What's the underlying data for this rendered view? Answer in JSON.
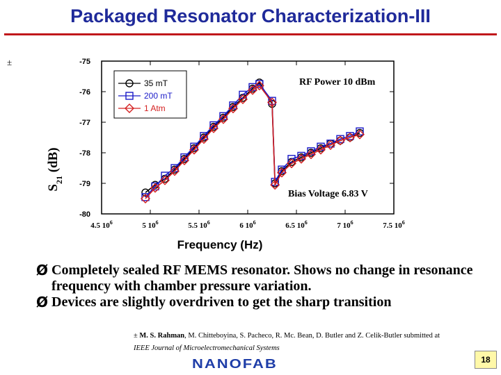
{
  "slide": {
    "title": "Packaged Resonator Characterization-III",
    "footnote_marker": "±",
    "bullets": [
      {
        "arrow": "Ø",
        "text": "Completely sealed RF MEMS resonator. Shows no change in resonance frequency with chamber pressure variation."
      },
      {
        "arrow": "Ø",
        "text": "Devices are slightly overdriven to get the sharp transition"
      }
    ],
    "reference": {
      "marker": "±",
      "lead_author": "M. S. Rahman",
      "authors_rest": ", M. Chitteboyina, S. Pacheco, R. Mc. Bean, D. Butler and Z. Celik-Butler submitted at",
      "journal": "IEEE Journal of Microelectromechanical Systems"
    },
    "logo_text": "NANOFAB",
    "page_number": "18",
    "colors": {
      "title": "#1f2a9a",
      "rule": "#c0171b",
      "logo": "#1f3ea8"
    }
  },
  "chart_data": {
    "type": "line",
    "xlabel": "Frequency (Hz)",
    "ylabel": "S21 (dB)",
    "ylabel_main": "S",
    "ylabel_sub": "21",
    "ylabel_unit": " (dB)",
    "xlim": [
      4500000,
      7500000
    ],
    "ylim": [
      -80,
      -75
    ],
    "xticks": [
      {
        "value": 4500000,
        "mant": "4.5 10",
        "exp": "6"
      },
      {
        "value": 5000000,
        "mant": "5 10",
        "exp": "6"
      },
      {
        "value": 5500000,
        "mant": "5.5 10",
        "exp": "6"
      },
      {
        "value": 6000000,
        "mant": "6 10",
        "exp": "6"
      },
      {
        "value": 6500000,
        "mant": "6.5 10",
        "exp": "6"
      },
      {
        "value": 7000000,
        "mant": "7 10",
        "exp": "6"
      },
      {
        "value": 7500000,
        "mant": "7.5 10",
        "exp": "6"
      }
    ],
    "yticks": [
      -75,
      -76,
      -77,
      -78,
      -79,
      -80
    ],
    "annotations": [
      "RF Power 10 dBm",
      "Bias Voltage 6.83 V"
    ],
    "legend_position": "top-left",
    "series": [
      {
        "name": "35 mT",
        "marker": "circle",
        "color": "#000000",
        "x": [
          4950000,
          5050000,
          5150000,
          5250000,
          5350000,
          5450000,
          5550000,
          5650000,
          5750000,
          5850000,
          5950000,
          6050000,
          6120000,
          6250000,
          6280000,
          6350000,
          6450000,
          6550000,
          6650000,
          6750000,
          6850000,
          6950000,
          7050000,
          7150000
        ],
        "y": [
          -79.3,
          -79.05,
          -78.85,
          -78.55,
          -78.2,
          -77.85,
          -77.5,
          -77.15,
          -76.85,
          -76.5,
          -76.2,
          -75.9,
          -75.7,
          -76.4,
          -79.0,
          -78.6,
          -78.3,
          -78.15,
          -78.0,
          -77.85,
          -77.7,
          -77.6,
          -77.5,
          -77.35
        ]
      },
      {
        "name": "200 mT",
        "marker": "square",
        "color": "#1a1ac8",
        "x": [
          4950000,
          5050000,
          5150000,
          5250000,
          5350000,
          5450000,
          5550000,
          5650000,
          5750000,
          5850000,
          5950000,
          6050000,
          6120000,
          6250000,
          6280000,
          6350000,
          6450000,
          6550000,
          6650000,
          6750000,
          6850000,
          6950000,
          7050000,
          7150000
        ],
        "y": [
          -79.45,
          -79.1,
          -78.75,
          -78.5,
          -78.15,
          -77.8,
          -77.45,
          -77.1,
          -76.8,
          -76.45,
          -76.1,
          -75.85,
          -75.75,
          -76.3,
          -78.95,
          -78.55,
          -78.2,
          -78.1,
          -77.95,
          -77.8,
          -77.7,
          -77.55,
          -77.45,
          -77.3
        ]
      },
      {
        "name": "1 Atm",
        "marker": "diamond",
        "color": "#d42020",
        "x": [
          4950000,
          5050000,
          5150000,
          5250000,
          5350000,
          5450000,
          5550000,
          5650000,
          5750000,
          5850000,
          5950000,
          6050000,
          6120000,
          6250000,
          6280000,
          6350000,
          6450000,
          6550000,
          6650000,
          6750000,
          6850000,
          6950000,
          7050000,
          7150000
        ],
        "y": [
          -79.5,
          -79.15,
          -78.9,
          -78.6,
          -78.25,
          -77.9,
          -77.55,
          -77.2,
          -76.9,
          -76.55,
          -76.25,
          -75.95,
          -75.8,
          -76.35,
          -79.05,
          -78.65,
          -78.35,
          -78.2,
          -78.05,
          -77.9,
          -77.75,
          -77.6,
          -77.5,
          -77.4
        ]
      }
    ]
  }
}
